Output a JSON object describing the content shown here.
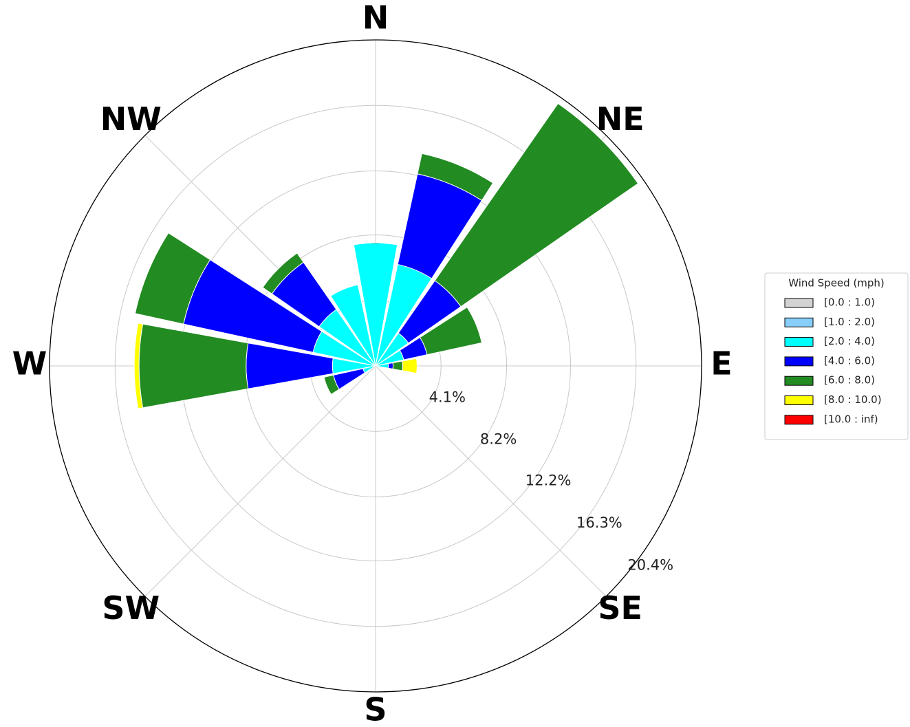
{
  "chart_data": {
    "type": "windrose",
    "categories": [
      "N",
      null,
      "NE",
      null,
      "E",
      null,
      "SE",
      null,
      "S",
      null,
      "SW",
      null,
      "W",
      null,
      "NW",
      null
    ],
    "legend_title": "Wind Speed (mph)",
    "series": [
      {
        "name": "[0.0 : 1.0)",
        "color": "#d3d3d3",
        "values": [
          0,
          0,
          0,
          0,
          0,
          0,
          0,
          0,
          0,
          0,
          0,
          0,
          0,
          0,
          0,
          0
        ]
      },
      {
        "name": "[1.0 : 2.0)",
        "color": "#87cefa",
        "values": [
          0,
          0,
          0,
          0,
          0,
          0,
          0,
          0,
          0,
          0,
          0,
          0,
          0,
          0,
          0,
          0
        ]
      },
      {
        "name": "[2.0 : 4.0)",
        "color": "#00ffff",
        "values": [
          7.7,
          6.5,
          2.5,
          1.8,
          0.8,
          0,
          0,
          0,
          0,
          0,
          0,
          0.8,
          2.7,
          4.0,
          4.3,
          5.2
        ]
      },
      {
        "name": "[4.0 : 6.0)",
        "color": "#0000ff",
        "values": [
          0,
          5.8,
          4.0,
          1.5,
          0.3,
          0,
          0,
          0,
          0,
          0,
          0,
          1.9,
          5.4,
          8.3,
          3.6,
          0
        ]
      },
      {
        "name": "[6.0 : 8.0)",
        "color": "#228b22",
        "values": [
          0,
          1.3,
          13.5,
          3.5,
          0.6,
          0,
          0,
          0,
          0,
          0,
          0,
          0.6,
          6.7,
          3.1,
          0.7,
          0
        ]
      },
      {
        "name": "[8.0 : 10.0)",
        "color": "#ffff00",
        "values": [
          0,
          0,
          0,
          0,
          0.9,
          0,
          0,
          0,
          0,
          0,
          0,
          0,
          0.3,
          0,
          0,
          0
        ]
      },
      {
        "name": "[10.0 : inf)",
        "color": "#ff0000",
        "values": [
          0,
          0,
          0,
          0,
          0,
          0,
          0,
          0,
          0,
          0,
          0,
          0,
          0,
          0,
          0,
          0
        ]
      }
    ],
    "ylim": [
      0,
      20.4
    ],
    "yticks": [
      {
        "value": 4.1,
        "label": "4.1%"
      },
      {
        "value": 8.2,
        "label": "8.2%"
      },
      {
        "value": 12.2,
        "label": "12.2%"
      },
      {
        "value": 16.3,
        "label": "16.3%"
      },
      {
        "value": 20.4,
        "label": "20.4%"
      }
    ],
    "grid": true,
    "legend": "right"
  }
}
